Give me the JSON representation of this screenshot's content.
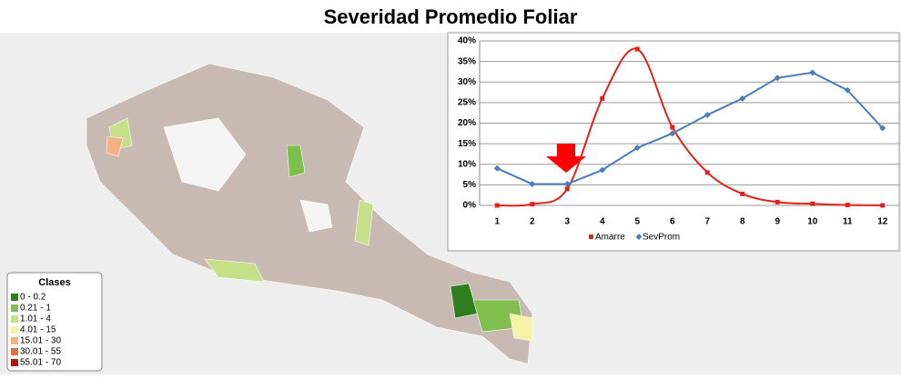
{
  "chart_data": {
    "type": "line",
    "title": "Severidad Promedio Foliar",
    "categories": [
      "1",
      "2",
      "3",
      "4",
      "5",
      "6",
      "7",
      "8",
      "9",
      "10",
      "11",
      "12"
    ],
    "series": [
      {
        "name": "Amarre",
        "color": "#e3211c",
        "marker": "square",
        "smooth": true,
        "values": [
          0,
          0.3,
          4,
          26,
          38,
          19,
          8,
          2.8,
          0.8,
          0.4,
          0.1,
          0
        ]
      },
      {
        "name": "SevProm",
        "color": "#4a7ebb",
        "marker": "diamond",
        "smooth": false,
        "values": [
          9,
          5.2,
          5.2,
          8.6,
          14,
          17.5,
          22,
          26,
          31,
          32.3,
          28,
          18.8
        ]
      }
    ],
    "ylim": [
      0,
      40
    ],
    "yticks": [
      {
        "value": 0,
        "label": "0%"
      },
      {
        "value": 5,
        "label": "5%"
      },
      {
        "value": 10,
        "label": "10%"
      },
      {
        "value": 15,
        "label": "15%"
      },
      {
        "value": 20,
        "label": "20%"
      },
      {
        "value": 25,
        "label": "25%"
      },
      {
        "value": 30,
        "label": "30%"
      },
      {
        "value": 35,
        "label": "35%"
      },
      {
        "value": 40,
        "label": "40%"
      }
    ],
    "grid": true,
    "legend": "bottom"
  },
  "map_legend": {
    "title": "Clases",
    "items": [
      {
        "label": "0 - 0.2",
        "color": "#2e7d1e"
      },
      {
        "label": "0.21 - 1",
        "color": "#7fbf4d"
      },
      {
        "label": "1.01 - 4",
        "color": "#c6e08a"
      },
      {
        "label": "4.01 - 15",
        "color": "#f6f3a6"
      },
      {
        "label": "15.01 - 30",
        "color": "#f4b183"
      },
      {
        "label": "30.01 - 55",
        "color": "#e07040"
      },
      {
        "label": "55.01 - 70",
        "color": "#b01818"
      }
    ]
  }
}
